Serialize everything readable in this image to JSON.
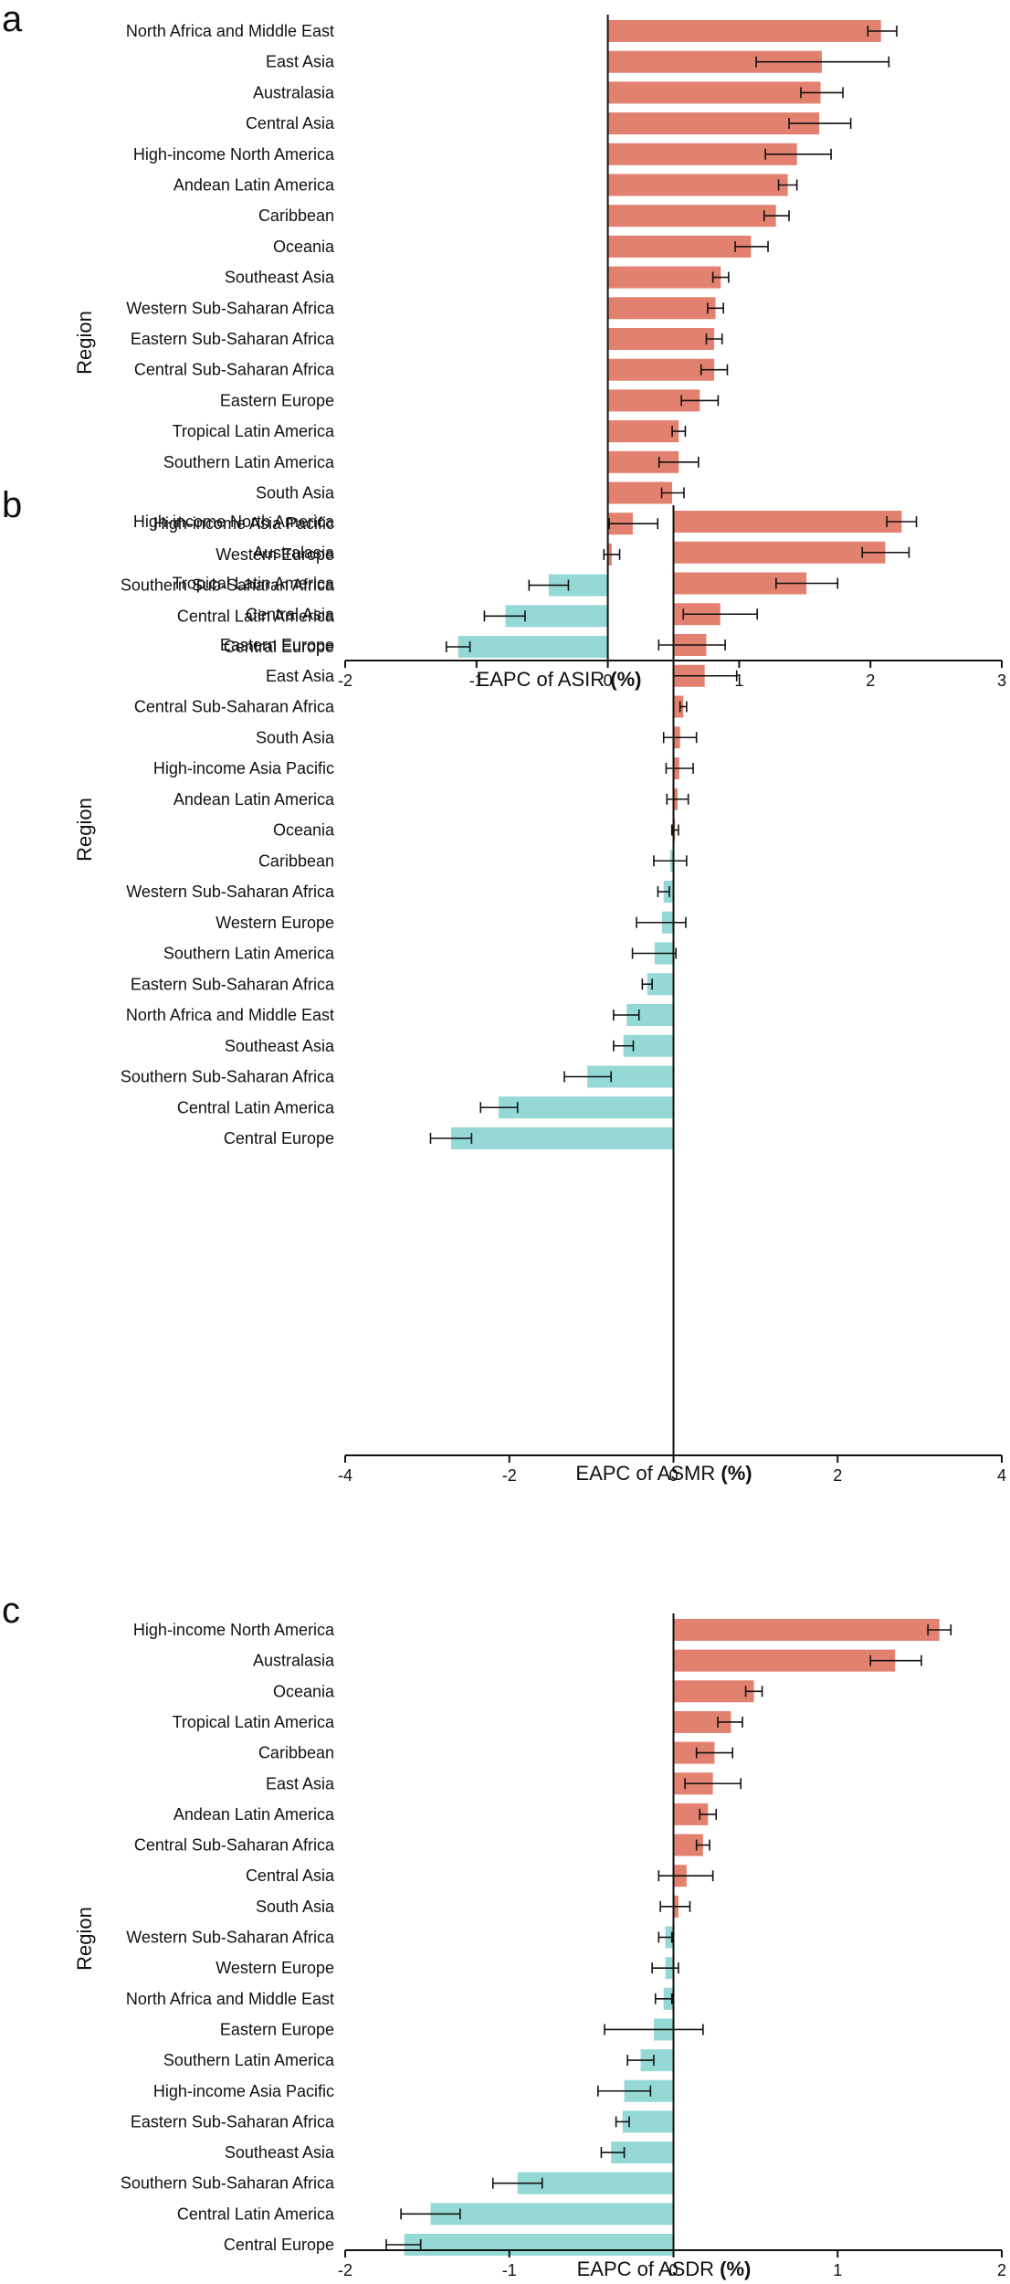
{
  "colors": {
    "positive": "#E2816F",
    "negative": "#94D9D6",
    "axis": "#111111",
    "errorbar": "#111111"
  },
  "chart_data": [
    {
      "panel": "a",
      "type": "bar",
      "orientation": "horizontal",
      "ylabel": "Region",
      "xlabel_main": "EAPC of ASIR",
      "xlabel_unit": "(%)",
      "xlim": [
        -2,
        3
      ],
      "xticks": [
        "-2",
        "-1",
        "0",
        "1",
        "2",
        "3"
      ],
      "categories": [
        "North Africa and Middle East",
        "East Asia",
        "Australasia",
        "Central Asia",
        "High-income North America",
        "Andean Latin America",
        "Caribbean",
        "Oceania",
        "Southeast Asia",
        "Western Sub-Saharan Africa",
        "Eastern Sub-Saharan Africa",
        "Central Sub-Saharan Africa",
        "Eastern Europe",
        "Tropical Latin America",
        "Southern Latin America",
        "South Asia",
        "High-income Asia Pacific",
        "Western Europe",
        "Southern Sub-Saharan Africa",
        "Central Latin America",
        "Central Europe"
      ],
      "values": [
        2.08,
        1.63,
        1.62,
        1.61,
        1.44,
        1.37,
        1.28,
        1.09,
        0.86,
        0.82,
        0.81,
        0.81,
        0.7,
        0.54,
        0.54,
        0.49,
        0.19,
        0.03,
        -0.45,
        -0.78,
        -1.14
      ],
      "ci_low": [
        1.98,
        1.13,
        1.47,
        1.38,
        1.2,
        1.3,
        1.19,
        0.97,
        0.8,
        0.76,
        0.75,
        0.71,
        0.56,
        0.49,
        0.39,
        0.41,
        0.01,
        -0.03,
        -0.6,
        -0.94,
        -1.23
      ],
      "ci_high": [
        2.2,
        2.14,
        1.79,
        1.85,
        1.7,
        1.44,
        1.38,
        1.22,
        0.92,
        0.88,
        0.87,
        0.91,
        0.84,
        0.59,
        0.69,
        0.58,
        0.38,
        0.09,
        -0.3,
        -0.63,
        -1.05
      ]
    },
    {
      "panel": "b",
      "type": "bar",
      "orientation": "horizontal",
      "ylabel": "Region",
      "xlabel_main": "EAPC of ASMR",
      "xlabel_unit": "(%)",
      "xlim": [
        -4,
        4
      ],
      "xticks": [
        "-4",
        "-2",
        "0",
        "2",
        "4"
      ],
      "categories": [
        "High-income North America",
        "Australasia",
        "Tropical Latin America",
        "Central Asia",
        "Eastern Europe",
        "East Asia",
        "Central Sub-Saharan Africa",
        "South Asia",
        "High-income Asia Pacific",
        "Andean Latin America",
        "Oceania",
        "Caribbean",
        "Western Sub-Saharan Africa",
        "Western Europe",
        "Southern Latin America",
        "Eastern Sub-Saharan Africa",
        "North Africa and Middle East",
        "Southeast Asia",
        "Southern Sub-Saharan Africa",
        "Central Latin America",
        "Central Europe"
      ],
      "values": [
        2.78,
        2.58,
        1.62,
        0.57,
        0.4,
        0.38,
        0.12,
        0.08,
        0.07,
        0.05,
        0.02,
        -0.04,
        -0.12,
        -0.14,
        -0.23,
        -0.32,
        -0.57,
        -0.61,
        -1.05,
        -2.13,
        -2.71
      ],
      "ci_low": [
        2.6,
        2.3,
        1.25,
        0.12,
        -0.18,
        0.0,
        0.08,
        -0.12,
        -0.09,
        -0.08,
        -0.02,
        -0.24,
        -0.19,
        -0.45,
        -0.5,
        -0.38,
        -0.73,
        -0.73,
        -1.33,
        -2.35,
        -2.96
      ],
      "ci_high": [
        2.96,
        2.87,
        2.0,
        1.02,
        0.63,
        0.77,
        0.16,
        0.28,
        0.24,
        0.18,
        0.06,
        0.16,
        -0.05,
        0.15,
        0.03,
        -0.26,
        -0.42,
        -0.49,
        -0.76,
        -1.9,
        -2.46
      ]
    },
    {
      "panel": "c",
      "type": "bar",
      "orientation": "horizontal",
      "ylabel": "Region",
      "xlabel_main": "EAPC of ASDR",
      "xlabel_unit": "(%)",
      "xlim": [
        -2,
        2
      ],
      "xticks": [
        "-2",
        "-1",
        "0",
        "1",
        "2"
      ],
      "categories": [
        "High-income North America",
        "Australasia",
        "Oceania",
        "Tropical Latin America",
        "Caribbean",
        "East Asia",
        "Andean Latin America",
        "Central Sub-Saharan Africa",
        "Central Asia",
        "South Asia",
        "Western Sub-Saharan Africa",
        "Western Europe",
        "North Africa and Middle East",
        "Eastern Europe",
        "Southern Latin America",
        "High-income Asia Pacific",
        "Eastern Sub-Saharan Africa",
        "Southeast Asia",
        "Southern Sub-Saharan Africa",
        "Central Latin America",
        "Central Europe"
      ],
      "values": [
        1.62,
        1.35,
        0.49,
        0.35,
        0.25,
        0.24,
        0.21,
        0.18,
        0.08,
        0.03,
        -0.05,
        -0.05,
        -0.06,
        -0.12,
        -0.2,
        -0.3,
        -0.31,
        -0.38,
        -0.95,
        -1.48,
        -1.64
      ],
      "ci_low": [
        1.55,
        1.2,
        0.44,
        0.27,
        0.14,
        0.07,
        0.16,
        0.14,
        -0.09,
        -0.08,
        -0.09,
        -0.13,
        -0.11,
        -0.42,
        -0.28,
        -0.46,
        -0.35,
        -0.44,
        -1.1,
        -1.66,
        -1.75
      ],
      "ci_high": [
        1.69,
        1.51,
        0.54,
        0.42,
        0.36,
        0.41,
        0.26,
        0.22,
        0.24,
        0.1,
        -0.01,
        0.03,
        -0.01,
        0.18,
        -0.12,
        -0.14,
        -0.27,
        -0.3,
        -0.8,
        -1.3,
        -1.54
      ]
    }
  ]
}
